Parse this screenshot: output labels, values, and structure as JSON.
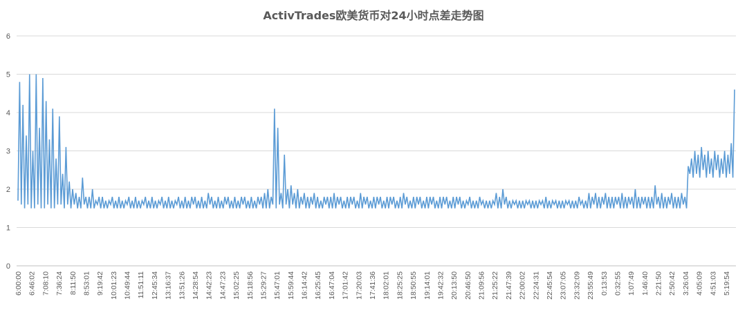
{
  "chart_data": {
    "type": "line",
    "title": "ActivTrades欧美货币对24小时点差走势图",
    "xlabel": "",
    "ylabel": "",
    "ylim": [
      0,
      6
    ],
    "yticks": [
      0,
      1,
      2,
      3,
      4,
      5,
      6
    ],
    "grid": true,
    "legend": "none",
    "series_color": "#5b9bd5",
    "x_tick_labels": [
      "6:00:00",
      "6:46:02",
      "7:08:10",
      "7:36:24",
      "8:11:50",
      "8:53:01",
      "9:19:42",
      "10:01:23",
      "10:49:44",
      "11:51:11",
      "12:45:34",
      "13:16:37",
      "13:51:26",
      "14:28:54",
      "14:42:23",
      "14:47:23",
      "15:02:25",
      "15:18:56",
      "15:29:27",
      "15:47:01",
      "15:59:44",
      "16:14:42",
      "16:25:45",
      "16:47:04",
      "17:01:42",
      "17:20:03",
      "17:41:36",
      "18:02:01",
      "18:25:25",
      "18:50:55",
      "19:14:01",
      "19:42:32",
      "20:13:50",
      "20:46:50",
      "21:09:56",
      "21:25:22",
      "21:47:39",
      "22:00:02",
      "22:24:31",
      "22:45:54",
      "23:07:05",
      "23:32:09",
      "23:55:49",
      "0:13:53",
      "0:32:55",
      "1:07:49",
      "1:46:40",
      "2:21:50",
      "2:50:42",
      "3:26:04",
      "4:05:09",
      "4:51:03",
      "5:19:54"
    ],
    "series": [
      {
        "values": [
          1.7,
          4.8,
          1.6,
          4.2,
          1.5,
          3.4,
          1.6,
          5.0,
          1.5,
          3.0,
          1.5,
          5.0,
          1.6,
          3.6,
          1.5,
          4.9,
          1.5,
          4.3,
          1.6,
          3.3,
          1.5,
          4.1,
          1.5,
          2.8,
          1.6,
          3.9,
          1.6,
          2.4,
          1.5,
          3.1,
          1.6,
          2.2,
          1.5,
          2.0,
          1.6,
          1.9,
          1.5,
          1.8,
          1.5,
          2.3,
          1.6,
          1.8,
          1.5,
          1.8,
          1.5,
          2.0,
          1.5,
          1.7,
          1.6,
          1.8,
          1.5,
          1.8,
          1.5,
          1.7,
          1.5,
          1.7,
          1.6,
          1.8,
          1.5,
          1.7,
          1.5,
          1.8,
          1.5,
          1.7,
          1.5,
          1.7,
          1.6,
          1.8,
          1.5,
          1.7,
          1.5,
          1.8,
          1.5,
          1.7,
          1.5,
          1.7,
          1.6,
          1.8,
          1.5,
          1.7,
          1.5,
          1.8,
          1.5,
          1.7,
          1.5,
          1.7,
          1.6,
          1.8,
          1.5,
          1.7,
          1.5,
          1.8,
          1.5,
          1.7,
          1.5,
          1.7,
          1.6,
          1.8,
          1.5,
          1.7,
          1.5,
          1.8,
          1.5,
          1.7,
          1.5,
          1.8,
          1.6,
          1.8,
          1.5,
          1.7,
          1.5,
          1.8,
          1.5,
          1.7,
          1.5,
          1.9,
          1.6,
          1.8,
          1.5,
          1.7,
          1.5,
          1.8,
          1.5,
          1.7,
          1.5,
          1.8,
          1.6,
          1.8,
          1.5,
          1.7,
          1.5,
          1.8,
          1.5,
          1.7,
          1.5,
          1.8,
          1.6,
          1.8,
          1.5,
          1.7,
          1.5,
          1.8,
          1.5,
          1.7,
          1.5,
          1.8,
          1.6,
          1.8,
          1.5,
          1.9,
          1.5,
          2.0,
          1.5,
          1.8,
          1.6,
          4.1,
          1.5,
          3.6,
          1.6,
          1.9,
          1.5,
          2.9,
          1.6,
          2.0,
          1.5,
          2.1,
          1.6,
          1.9,
          1.5,
          2.0,
          1.5,
          1.8,
          1.6,
          1.9,
          1.5,
          1.8,
          1.5,
          1.8,
          1.6,
          1.9,
          1.5,
          1.8,
          1.5,
          1.7,
          1.5,
          1.8,
          1.6,
          1.8,
          1.5,
          1.8,
          1.5,
          1.9,
          1.5,
          1.8,
          1.6,
          1.8,
          1.5,
          1.7,
          1.5,
          1.8,
          1.5,
          1.8,
          1.6,
          1.8,
          1.5,
          1.7,
          1.5,
          1.9,
          1.5,
          1.8,
          1.6,
          1.8,
          1.5,
          1.7,
          1.5,
          1.8,
          1.5,
          1.8,
          1.6,
          1.8,
          1.5,
          1.7,
          1.5,
          1.8,
          1.5,
          1.8,
          1.6,
          1.8,
          1.5,
          1.7,
          1.5,
          1.8,
          1.5,
          1.9,
          1.6,
          1.8,
          1.5,
          1.7,
          1.5,
          1.8,
          1.5,
          1.8,
          1.6,
          1.8,
          1.5,
          1.7,
          1.5,
          1.8,
          1.5,
          1.8,
          1.6,
          1.8,
          1.5,
          1.7,
          1.5,
          1.8,
          1.5,
          1.8,
          1.6,
          1.8,
          1.5,
          1.7,
          1.5,
          1.8,
          1.5,
          1.8,
          1.6,
          1.8,
          1.5,
          1.7,
          1.5,
          1.7,
          1.6,
          1.8,
          1.5,
          1.7,
          1.5,
          1.7,
          1.5,
          1.8,
          1.6,
          1.7,
          1.5,
          1.7,
          1.5,
          1.7,
          1.5,
          1.7,
          1.6,
          1.9,
          1.5,
          1.8,
          1.5,
          2.0,
          1.6,
          1.8,
          1.5,
          1.7,
          1.5,
          1.7,
          1.6,
          1.7,
          1.5,
          1.7,
          1.5,
          1.7,
          1.5,
          1.7,
          1.6,
          1.7,
          1.5,
          1.7,
          1.5,
          1.7,
          1.5,
          1.7,
          1.6,
          1.7,
          1.5,
          1.8,
          1.5,
          1.7,
          1.5,
          1.7,
          1.6,
          1.7,
          1.5,
          1.7,
          1.5,
          1.7,
          1.5,
          1.7,
          1.6,
          1.7,
          1.5,
          1.7,
          1.5,
          1.7,
          1.5,
          1.8,
          1.6,
          1.7,
          1.5,
          1.7,
          1.5,
          1.9,
          1.5,
          1.8,
          1.6,
          1.9,
          1.5,
          1.8,
          1.5,
          1.8,
          1.6,
          1.9,
          1.5,
          1.8,
          1.5,
          1.8,
          1.5,
          1.8,
          1.6,
          1.8,
          1.5,
          1.9,
          1.5,
          1.8,
          1.5,
          1.8,
          1.6,
          1.8,
          1.5,
          2.0,
          1.5,
          1.8,
          1.5,
          1.8,
          1.6,
          1.8,
          1.5,
          1.8,
          1.5,
          1.8,
          1.5,
          2.1,
          1.6,
          1.8,
          1.5,
          1.9,
          1.5,
          1.8,
          1.5,
          1.8,
          1.6,
          1.9,
          1.5,
          1.8,
          1.5,
          1.8,
          1.5,
          1.9,
          1.6,
          1.8,
          1.5,
          2.6,
          2.4,
          2.8,
          2.3,
          3.0,
          2.4,
          2.9,
          2.3,
          3.1,
          2.5,
          2.9,
          2.3,
          3.0,
          2.4,
          2.8,
          2.3,
          3.0,
          2.5,
          2.9,
          2.3,
          2.8,
          2.4,
          3.0,
          2.3,
          2.9,
          2.4,
          3.2,
          2.3,
          4.6
        ]
      }
    ]
  }
}
